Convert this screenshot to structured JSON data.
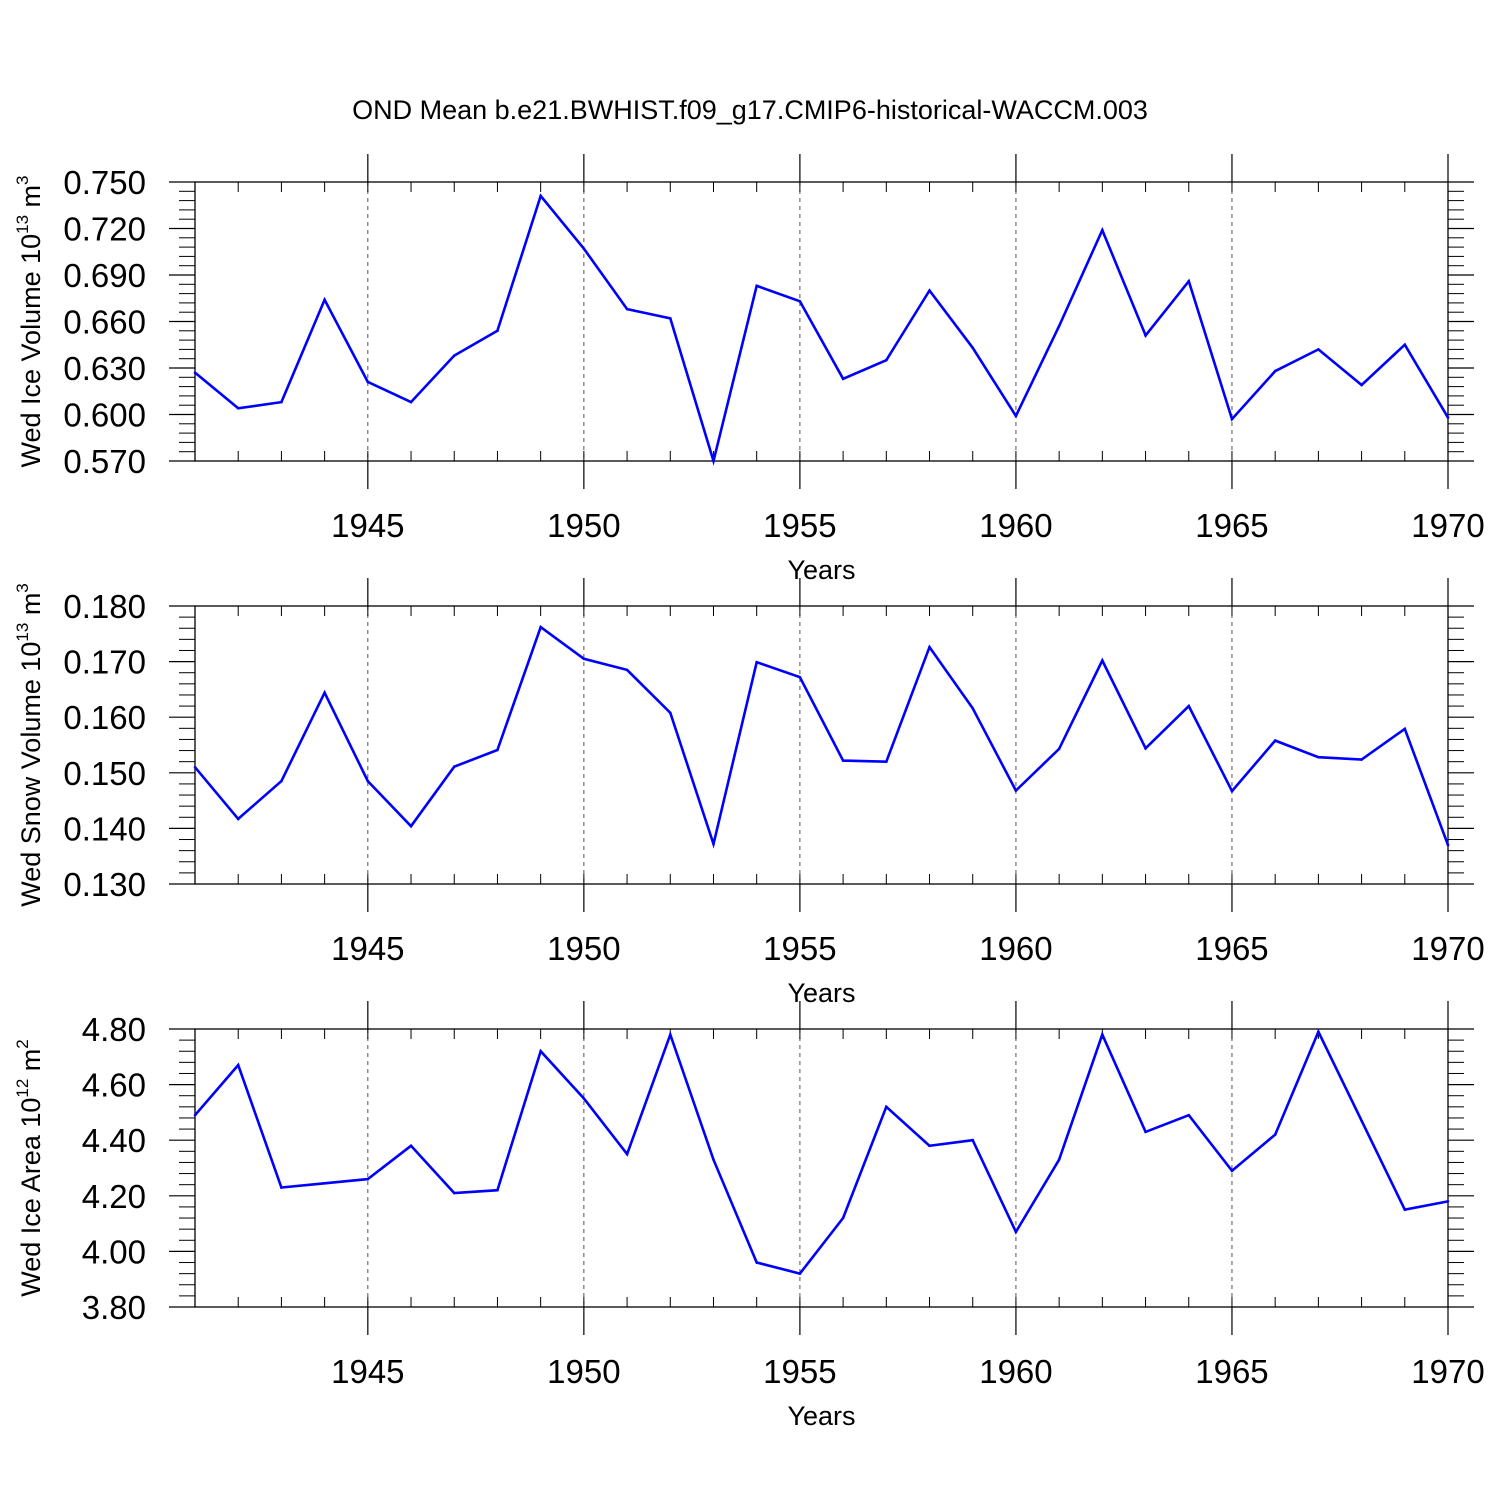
{
  "title": "OND Mean b.e21.BWHIST.f09_g17.CMIP6-historical-WACCM.003",
  "colors": {
    "line": "#0000ff",
    "axis": "#000000",
    "grid": "#555555"
  },
  "chart_data": [
    {
      "type": "line",
      "ylabel": {
        "text": "Wed Ice Volume 10",
        "exp": "13",
        "unit": " m",
        "unit_exp": "3"
      },
      "xlabel": "Years",
      "xlim": [
        1941,
        1970
      ],
      "ylim": [
        0.57,
        0.75
      ],
      "yticks": [
        0.57,
        0.6,
        0.63,
        0.66,
        0.69,
        0.72,
        0.75
      ],
      "ytick_labels": [
        "0.570",
        "0.600",
        "0.630",
        "0.660",
        "0.690",
        "0.720",
        "0.750"
      ],
      "xticks": [
        1945,
        1950,
        1955,
        1960,
        1965,
        1970
      ],
      "xtick_labels": [
        "1945",
        "1950",
        "1955",
        "1960",
        "1965",
        "1970"
      ],
      "x": [
        1941,
        1942,
        1943,
        1944,
        1945,
        1946,
        1947,
        1948,
        1949,
        1950,
        1951,
        1952,
        1953,
        1954,
        1955,
        1956,
        1957,
        1958,
        1959,
        1960,
        1961,
        1962,
        1963,
        1964,
        1965,
        1966,
        1967,
        1968,
        1969,
        1970
      ],
      "values": [
        0.627,
        0.604,
        0.608,
        0.674,
        0.621,
        0.608,
        0.638,
        0.654,
        0.741,
        0.707,
        0.668,
        0.662,
        0.57,
        0.683,
        0.673,
        0.623,
        0.635,
        0.68,
        0.643,
        0.599,
        0.657,
        0.719,
        0.651,
        0.686,
        0.597,
        0.628,
        0.642,
        0.619,
        0.645,
        0.598
      ]
    },
    {
      "type": "line",
      "ylabel": {
        "text": "Wed Snow Volume 10",
        "exp": "13",
        "unit": " m",
        "unit_exp": "3"
      },
      "xlabel": "Years",
      "xlim": [
        1941,
        1970
      ],
      "ylim": [
        0.13,
        0.18
      ],
      "yticks": [
        0.13,
        0.14,
        0.15,
        0.16,
        0.17,
        0.18
      ],
      "ytick_labels": [
        "0.130",
        "0.140",
        "0.150",
        "0.160",
        "0.170",
        "0.180"
      ],
      "xticks": [
        1945,
        1950,
        1955,
        1960,
        1965,
        1970
      ],
      "xtick_labels": [
        "1945",
        "1950",
        "1955",
        "1960",
        "1965",
        "1970"
      ],
      "x": [
        1941,
        1942,
        1943,
        1944,
        1945,
        1946,
        1947,
        1948,
        1949,
        1950,
        1951,
        1952,
        1953,
        1954,
        1955,
        1956,
        1957,
        1958,
        1959,
        1960,
        1961,
        1962,
        1963,
        1964,
        1965,
        1966,
        1967,
        1968,
        1969,
        1970
      ],
      "values": [
        0.151,
        0.1417,
        0.1485,
        0.1644,
        0.1485,
        0.1404,
        0.1511,
        0.1541,
        0.1762,
        0.1705,
        0.1685,
        0.1608,
        0.1372,
        0.1699,
        0.1672,
        0.1522,
        0.152,
        0.1726,
        0.1616,
        0.1468,
        0.1543,
        0.1702,
        0.1544,
        0.162,
        0.1467,
        0.1558,
        0.1528,
        0.1524,
        0.1579,
        0.137
      ]
    },
    {
      "type": "line",
      "ylabel": {
        "text": "Wed Ice Area 10",
        "exp": "12",
        "unit": " m",
        "unit_exp": "2"
      },
      "xlabel": "Years",
      "xlim": [
        1941,
        1970
      ],
      "ylim": [
        3.8,
        4.8
      ],
      "yticks": [
        3.8,
        4.0,
        4.2,
        4.4,
        4.6,
        4.8
      ],
      "ytick_labels": [
        "3.80",
        "4.00",
        "4.20",
        "4.40",
        "4.60",
        "4.80"
      ],
      "xticks": [
        1945,
        1950,
        1955,
        1960,
        1965,
        1970
      ],
      "xtick_labels": [
        "1945",
        "1950",
        "1955",
        "1960",
        "1965",
        "1970"
      ],
      "x": [
        1941,
        1942,
        1943,
        1944,
        1945,
        1946,
        1947,
        1948,
        1949,
        1950,
        1951,
        1952,
        1953,
        1954,
        1955,
        1956,
        1957,
        1958,
        1959,
        1960,
        1961,
        1962,
        1963,
        1964,
        1965,
        1966,
        1967,
        1968,
        1969,
        1970
      ],
      "values": [
        4.49,
        4.67,
        4.23,
        4.245,
        4.26,
        4.38,
        4.21,
        4.22,
        4.72,
        4.55,
        4.35,
        4.78,
        4.33,
        3.96,
        3.92,
        4.12,
        4.52,
        4.38,
        4.4,
        4.07,
        4.33,
        4.78,
        4.43,
        4.49,
        4.29,
        4.42,
        4.79,
        4.47,
        4.15,
        4.18
      ]
    }
  ]
}
